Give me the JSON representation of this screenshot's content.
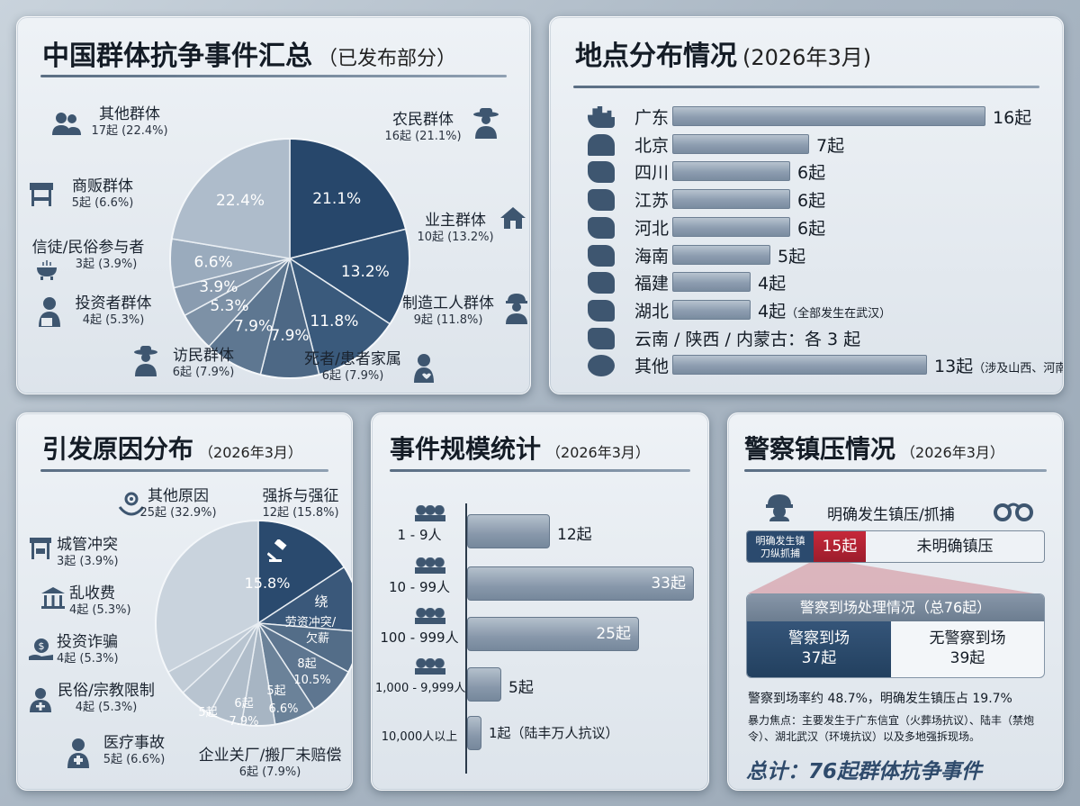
{
  "panel1": {
    "title": "中国群体抗争事件汇总",
    "subtitle": "（已发布部分）",
    "legend": [
      {
        "name": "其他群体",
        "detail": "17起 (22.4%)",
        "icon": "group-icon"
      },
      {
        "name": "农民群体",
        "detail": "16起 (21.1%)",
        "icon": "farmer-icon"
      },
      {
        "name": "商贩群体",
        "detail": "5起 (6.6%)",
        "icon": "market-stall-icon"
      },
      {
        "name": "业主群体",
        "detail": "10起 (13.2%)",
        "icon": "house-icon"
      },
      {
        "name": "信徒/民俗参与者",
        "detail": "3起 (3.9%)",
        "icon": "incense-burner-icon"
      },
      {
        "name": "投资者群体",
        "detail": "4起 (5.3%)",
        "icon": "investor-icon"
      },
      {
        "name": "制造工人群体",
        "detail": "9起 (11.8%)",
        "icon": "worker-icon"
      },
      {
        "name": "访民群体",
        "detail": "6起 (7.9%)",
        "icon": "petitioner-icon"
      },
      {
        "name": "死者/患者家属",
        "detail": "6起 (7.9%)",
        "icon": "family-icon"
      }
    ]
  },
  "panel2": {
    "title": "地点分布情况",
    "subtitle": "(2026年3月)",
    "rows": [
      {
        "name": "广东",
        "value_text": "16起",
        "note": "",
        "icon": "city-skyline-icon"
      },
      {
        "name": "北京",
        "value_text": "7起",
        "note": "",
        "icon": "capitol-icon"
      },
      {
        "name": "四川",
        "value_text": "6起",
        "note": "",
        "icon": "province-map-icon"
      },
      {
        "name": "江苏",
        "value_text": "6起",
        "note": "",
        "icon": "province-map-icon"
      },
      {
        "name": "河北",
        "value_text": "6起",
        "note": "",
        "icon": "province-map-icon"
      },
      {
        "name": "海南",
        "value_text": "5起",
        "note": "",
        "icon": "province-map-icon"
      },
      {
        "name": "福建",
        "value_text": "4起",
        "note": "",
        "icon": "province-map-icon"
      },
      {
        "name": "湖北",
        "value_text": "4起",
        "note": "（全部发生在武汉）",
        "icon": "province-map-icon"
      },
      {
        "name": "云南 / 陕西 / 内蒙古：各 3 起",
        "value_text": "",
        "note": "",
        "icon": "province-map-icon"
      },
      {
        "name": "其他",
        "value_text": "13起",
        "note": "（涉及山西、河南、江西、山东等）",
        "icon": "globe-icon"
      }
    ]
  },
  "panel3": {
    "title": "引发原因分布",
    "subtitle": "（2026年3月）",
    "legend_left": [
      {
        "name": "城管冲突",
        "detail": "3起 (3.9%)",
        "icon": "stall-icon"
      },
      {
        "name": "乱收费",
        "detail": "4起 (5.3%)",
        "icon": "building-icon"
      },
      {
        "name": "投资诈骗",
        "detail": "4起 (5.3%)",
        "icon": "money-hand-icon"
      },
      {
        "name": "民俗/宗教限制",
        "detail": "4起 (5.3%)",
        "icon": "religion-icon"
      },
      {
        "name": "医疗事故",
        "detail": "5起 (6.6%)",
        "icon": "doctor-icon"
      }
    ],
    "legend_top": [
      {
        "name": "其他原因",
        "detail": "25起 (32.9%)",
        "icon": "gear-hand-icon"
      },
      {
        "name": "强拆与强征",
        "detail": "12起 (15.8%)",
        "icon": ""
      }
    ],
    "legend_bottom": {
      "name": "企业关厂/搬厂未赔偿",
      "detail": "6起 (7.9%)"
    },
    "slice_labels": {
      "demolition_pct": "15.8%",
      "labor_title": "劳资冲突/",
      "labor_title2": "欠薪",
      "labor_char": "绕",
      "labor_count": "8起",
      "labor_pct": "10.5%",
      "closure_count": "5起",
      "closure_pct": "6.6%",
      "s6_count": "6起",
      "s6_pct": "7.9%",
      "s5_count": "5起"
    }
  },
  "panel4": {
    "title": "事件规模统计",
    "subtitle": "（2026年3月）",
    "rows": [
      {
        "name": "1 - 9人",
        "value_text": "12起",
        "inside": false,
        "icon": "people-small-icon"
      },
      {
        "name": "10 - 99人",
        "value_text": "33起",
        "inside": true,
        "icon": "people-medium-icon"
      },
      {
        "name": "100 - 999人",
        "value_text": "25起",
        "inside": true,
        "icon": "people-large-icon"
      },
      {
        "name": "1,000 - 9,999人",
        "value_text": "5起",
        "inside": false,
        "icon": "crowd-icon"
      },
      {
        "name": "10,000人以上",
        "value_text": "1起（陆丰万人抗议）",
        "inside": false,
        "icon": ""
      }
    ]
  },
  "panel5": {
    "title": "警察镇压情况",
    "subtitle": "（2026年3月）",
    "header": "明确发生镇压/抓捕",
    "stacked": {
      "label_left": "明确发生镇刀纵抓捕",
      "count_mid": "15起",
      "label_right": "未明确镇压"
    },
    "box_title": "警察到场处理情况（总76起）",
    "police_on": {
      "name": "警察到场",
      "value": "37起"
    },
    "police_off": {
      "name": "无警察到场",
      "value": "39起"
    },
    "summary": "警察到场率约 48.7%，明确发生镇压占 19.7%",
    "focus": "暴力焦点：主要发生于广东信宜（火葬场抗议）、陆丰（禁炮令）、湖北武汉（环境抗议）以及多地强拆现场。",
    "total": "总计：76起群体抗争事件"
  },
  "chart_data": [
    {
      "type": "pie",
      "title": "中国群体抗争事件汇总",
      "categories": [
        "农民群体",
        "业主群体",
        "制造工人群体",
        "死者/患者家属",
        "访民群体",
        "投资者群体",
        "信徒/民俗参与者",
        "商贩群体",
        "其他群体"
      ],
      "values": [
        16,
        10,
        9,
        6,
        6,
        4,
        3,
        5,
        17
      ],
      "percent_labels": [
        "21.1%",
        "13.2%",
        "11.8%",
        "7.9%",
        "7.9%",
        "5.3%",
        "3.9%",
        "6.6%",
        "22.4%"
      ],
      "colors": [
        "#27476b",
        "#2e4f73",
        "#3a5a7c",
        "#4d6885",
        "#5e7791",
        "#7d91a6",
        "#8a9cb0",
        "#9aabbd",
        "#aebccb"
      ]
    },
    {
      "type": "horizontal-bar",
      "title": "地点分布情况",
      "categories": [
        "广东",
        "北京",
        "四川",
        "江苏",
        "河北",
        "海南",
        "福建",
        "湖北",
        "云南 / 陕西 / 内蒙古",
        "其他"
      ],
      "values": [
        16,
        7,
        6,
        6,
        6,
        5,
        4,
        4,
        3,
        13
      ]
    },
    {
      "type": "pie",
      "title": "引发原因分布",
      "categories": [
        "强拆与强征",
        "劳资冲突/欠薪",
        "企业关厂/搬厂未赔偿",
        "企业关厂/搬厂未赔偿",
        "医疗事故",
        "民俗/宗教限制",
        "投资诈骗",
        "乱收费",
        "城管冲突",
        "其他原因"
      ],
      "values": [
        12,
        8,
        5,
        6,
        5,
        4,
        4,
        4,
        3,
        25
      ],
      "percent_labels": [
        "15.8%",
        "10.5%",
        "6.6%",
        "7.9%",
        "",
        "",
        "",
        "",
        "",
        ""
      ],
      "colors": [
        "#2a4a6e",
        "#3a587a",
        "#536d88",
        "#5e7690",
        "#6b8299",
        "#a7b5c3",
        "#b0bdca",
        "#b8c4d0",
        "#c0cbd6",
        "#c9d3dd"
      ]
    },
    {
      "type": "horizontal-bar",
      "title": "事件规模统计",
      "categories": [
        "1 - 9人",
        "10 - 99人",
        "100 - 999人",
        "1,000 - 9,999人",
        "10,000人以上"
      ],
      "values": [
        12,
        33,
        25,
        5,
        1
      ]
    },
    {
      "type": "stacked-bar",
      "title": "警察镇压情况",
      "categories": [
        "明确发生镇压/抓捕",
        "未明确镇压"
      ],
      "values": [
        15,
        61
      ]
    },
    {
      "type": "stacked-bar",
      "title": "警察到场处理情况（总76起）",
      "categories": [
        "警察到场",
        "无警察到场"
      ],
      "values": [
        37,
        39
      ]
    }
  ]
}
